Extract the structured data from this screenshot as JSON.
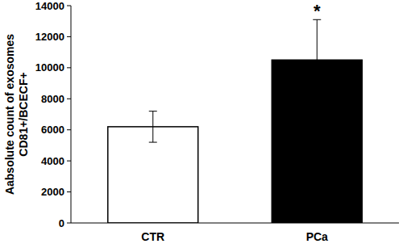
{
  "chart_data": {
    "type": "bar",
    "y_label": [
      "Aabsolute count of exosomes",
      "CD81+/BCECF+"
    ],
    "categories": [
      "CTR",
      "PCa"
    ],
    "values": [
      6200,
      10500
    ],
    "errors": [
      1000,
      2600
    ],
    "colors": [
      "#ffffff",
      "#000000"
    ],
    "ylim": [
      0,
      14000
    ],
    "yticks": [
      0,
      2000,
      4000,
      6000,
      8000,
      10000,
      12000,
      14000
    ],
    "grid": false,
    "annotations": [
      {
        "text": "*",
        "category": "PCa"
      }
    ]
  }
}
